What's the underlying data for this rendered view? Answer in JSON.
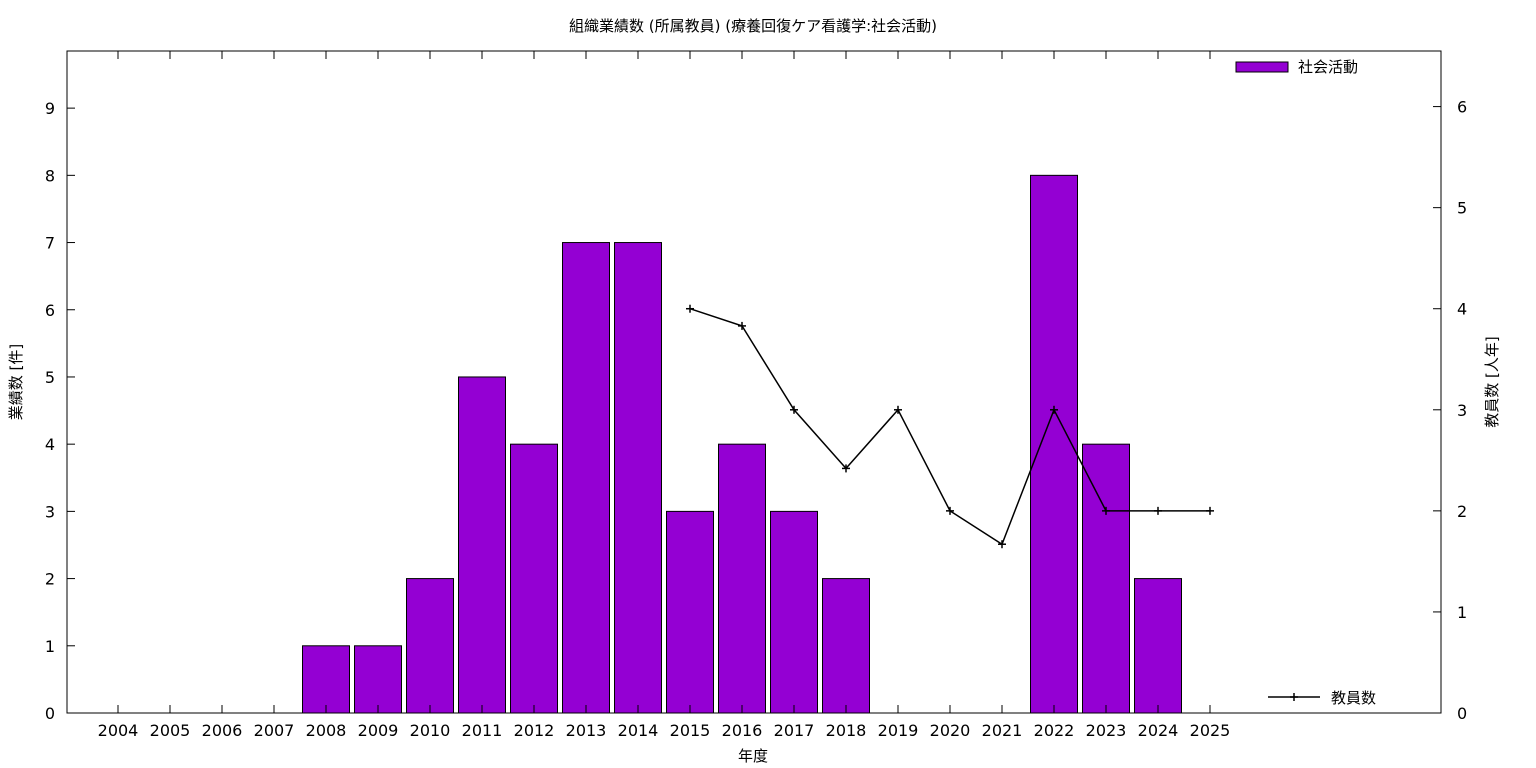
{
  "chart_data": {
    "type": "bar",
    "title": "組織業績数 (所属教員) (療養回復ケア看護学:社会活動)",
    "xlabel": "年度",
    "ylabel": "業績数 [件]",
    "y2label": "教員数 [人年]",
    "categories": [
      "2004",
      "2005",
      "2006",
      "2007",
      "2008",
      "2009",
      "2010",
      "2011",
      "2012",
      "2013",
      "2014",
      "2015",
      "2016",
      "2017",
      "2018",
      "2019",
      "2020",
      "2021",
      "2022",
      "2023",
      "2024",
      "2025"
    ],
    "ylim": [
      0,
      9.85
    ],
    "y2lim": [
      0,
      6.55
    ],
    "yticks": [
      0,
      1,
      2,
      3,
      4,
      5,
      6,
      7,
      8,
      9
    ],
    "y2ticks": [
      0,
      1,
      2,
      3,
      4,
      5,
      6
    ],
    "grid": false,
    "series": [
      {
        "name": "社会活動",
        "type": "bar",
        "axis": "left",
        "color": "#9400d3",
        "values": [
          0,
          0,
          0,
          0,
          1,
          1,
          2,
          5,
          4,
          7,
          7,
          3,
          4,
          3,
          2,
          0,
          0,
          0,
          8,
          4,
          2,
          0
        ]
      },
      {
        "name": "教員数",
        "type": "line",
        "axis": "right",
        "color": "#000000",
        "values": [
          null,
          null,
          null,
          null,
          null,
          null,
          null,
          null,
          null,
          null,
          null,
          4,
          3.83,
          3,
          2.42,
          3,
          2,
          1.67,
          3,
          2,
          2,
          2
        ]
      }
    ],
    "legend": [
      {
        "label": "社会活動",
        "position": "top-right"
      },
      {
        "label": "教員数",
        "position": "bottom-right"
      }
    ]
  }
}
